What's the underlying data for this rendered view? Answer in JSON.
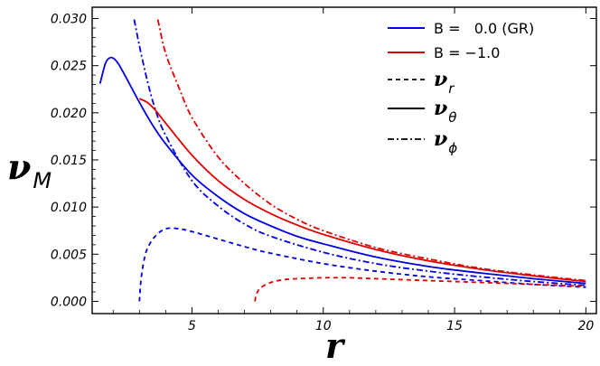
{
  "chart_data": {
    "type": "line",
    "title": "",
    "xlabel": "r",
    "ylabel_main": "ν",
    "ylabel_sub": "M",
    "xlim": [
      1.2,
      20.4
    ],
    "ylim": [
      -0.0013,
      0.0312
    ],
    "xticks": [
      5,
      10,
      15,
      20
    ],
    "yticks": [
      0.0,
      0.005,
      0.01,
      0.015,
      0.02,
      0.025,
      0.03
    ],
    "xtick_labels": [
      "5",
      "10",
      "15",
      "20"
    ],
    "ytick_labels": [
      "0.000",
      "0.005",
      "0.010",
      "0.015",
      "0.020",
      "0.025",
      "0.030"
    ],
    "colors": {
      "gr": "#0000e0",
      "b_neg": "#e00000",
      "black": "#000000"
    },
    "legend": {
      "placement": "top-right",
      "entries": [
        {
          "label": "B =   0.0 (GR)",
          "color": "#0000e0",
          "style": "solid"
        },
        {
          "label": "B = −1.0",
          "color": "#e00000",
          "style": "solid"
        },
        {
          "symbol": "ν",
          "sub": "r",
          "color": "#000000",
          "style": "dashed"
        },
        {
          "symbol": "ν",
          "sub": "θ",
          "color": "#000000",
          "style": "solid"
        },
        {
          "symbol": "ν",
          "sub": "ϕ",
          "color": "#000000",
          "style": "dashdot"
        }
      ]
    },
    "series": [
      {
        "group": "gr",
        "component": "theta",
        "style": "solid",
        "color": "#0000e0",
        "points": [
          [
            1.5,
            0.0231
          ],
          [
            1.7,
            0.0252
          ],
          [
            1.85,
            0.0258
          ],
          [
            2.0,
            0.0258
          ],
          [
            2.2,
            0.0252
          ],
          [
            2.5,
            0.0237
          ],
          [
            3.0,
            0.0211
          ],
          [
            3.5,
            0.0187
          ],
          [
            4,
            0.0167
          ],
          [
            5,
            0.0134
          ],
          [
            6,
            0.0111
          ],
          [
            7,
            0.0093
          ],
          [
            8,
            0.008
          ],
          [
            9,
            0.0069
          ],
          [
            10,
            0.0061
          ],
          [
            12,
            0.0047
          ],
          [
            14,
            0.0037
          ],
          [
            16,
            0.003
          ],
          [
            18,
            0.0024
          ],
          [
            20,
            0.0019
          ]
        ]
      },
      {
        "group": "gr",
        "component": "phi",
        "style": "dashdot",
        "color": "#0000e0",
        "points": [
          [
            2.8,
            0.0299
          ],
          [
            3.0,
            0.0271
          ],
          [
            3.3,
            0.0234
          ],
          [
            3.6,
            0.0204
          ],
          [
            4,
            0.0176
          ],
          [
            5,
            0.0128
          ],
          [
            6,
            0.0101
          ],
          [
            7,
            0.0082
          ],
          [
            8,
            0.0069
          ],
          [
            10,
            0.0052
          ],
          [
            12,
            0.004
          ],
          [
            14,
            0.0032
          ],
          [
            16,
            0.0026
          ],
          [
            18,
            0.0021
          ],
          [
            20,
            0.0017
          ]
        ]
      },
      {
        "group": "gr",
        "component": "r",
        "style": "dashed",
        "color": "#0000e0",
        "points": [
          [
            3.0,
            0.0
          ],
          [
            3.05,
            0.002
          ],
          [
            3.15,
            0.004
          ],
          [
            3.3,
            0.0056
          ],
          [
            3.6,
            0.0069
          ],
          [
            4.0,
            0.0077
          ],
          [
            4.5,
            0.0077
          ],
          [
            5,
            0.0074
          ],
          [
            6,
            0.0066
          ],
          [
            7,
            0.0058
          ],
          [
            8,
            0.0051
          ],
          [
            10,
            0.004
          ],
          [
            12,
            0.0032
          ],
          [
            14,
            0.0026
          ],
          [
            16,
            0.0022
          ],
          [
            18,
            0.0018
          ],
          [
            20,
            0.0015
          ]
        ]
      },
      {
        "group": "b_neg",
        "component": "theta",
        "style": "solid",
        "color": "#e00000",
        "points": [
          [
            3.0,
            0.0215
          ],
          [
            3.3,
            0.0211
          ],
          [
            3.6,
            0.0203
          ],
          [
            4,
            0.0189
          ],
          [
            5,
            0.0155
          ],
          [
            6,
            0.0128
          ],
          [
            7,
            0.0108
          ],
          [
            8,
            0.0093
          ],
          [
            9,
            0.0081
          ],
          [
            10,
            0.0071
          ],
          [
            12,
            0.0055
          ],
          [
            14,
            0.0043
          ],
          [
            16,
            0.0034
          ],
          [
            18,
            0.0027
          ],
          [
            20,
            0.0021
          ]
        ]
      },
      {
        "group": "b_neg",
        "component": "phi",
        "style": "dashdot",
        "color": "#e00000",
        "points": [
          [
            3.7,
            0.0299
          ],
          [
            4,
            0.0263
          ],
          [
            4.5,
            0.0227
          ],
          [
            5,
            0.0195
          ],
          [
            6,
            0.0153
          ],
          [
            7,
            0.0125
          ],
          [
            8,
            0.0103
          ],
          [
            9,
            0.0087
          ],
          [
            10,
            0.0075
          ],
          [
            12,
            0.0057
          ],
          [
            14,
            0.0045
          ],
          [
            16,
            0.0035
          ],
          [
            18,
            0.0028
          ],
          [
            20,
            0.0022
          ]
        ]
      },
      {
        "group": "b_neg",
        "component": "r",
        "style": "dashed",
        "color": "#e00000",
        "points": [
          [
            7.4,
            0.0
          ],
          [
            7.45,
            0.0007
          ],
          [
            7.6,
            0.0014
          ],
          [
            8,
            0.002
          ],
          [
            8.5,
            0.0023
          ],
          [
            9,
            0.0024
          ],
          [
            10,
            0.0025
          ],
          [
            11,
            0.0025
          ],
          [
            12,
            0.0024
          ],
          [
            14,
            0.0022
          ],
          [
            16,
            0.002
          ],
          [
            18,
            0.0018
          ],
          [
            20,
            0.0016
          ]
        ]
      }
    ]
  }
}
